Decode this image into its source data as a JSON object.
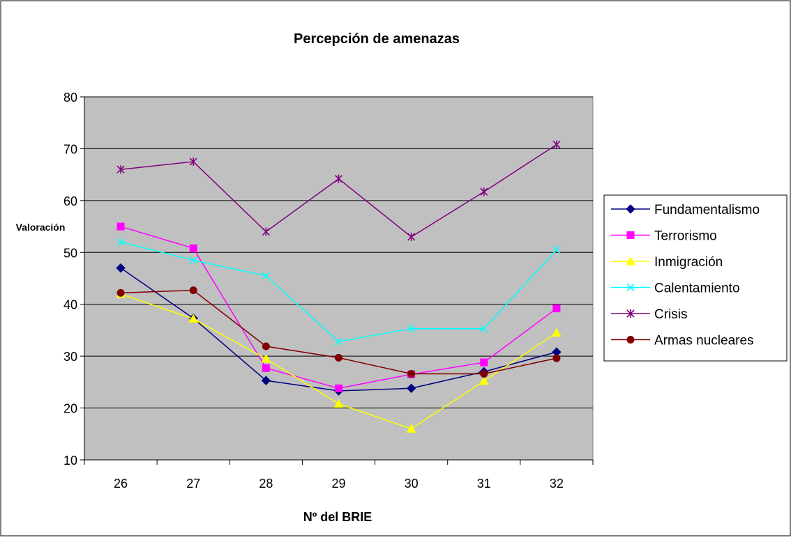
{
  "chart_data": {
    "type": "line",
    "title": "Percepción de amenazas",
    "xlabel": "Nº del BRIE",
    "ylabel": "Valoración",
    "categories": [
      "26",
      "27",
      "28",
      "29",
      "30",
      "31",
      "32"
    ],
    "ylim": [
      10,
      80
    ],
    "yticks": [
      10,
      20,
      30,
      40,
      50,
      60,
      70,
      80
    ],
    "grid": true,
    "legend_position": "right",
    "plot_background": "#c0c0c0",
    "series": [
      {
        "name": "Fundamentalismo",
        "color": "#000080",
        "marker": "diamond",
        "values": [
          47,
          37.3,
          25.3,
          23.3,
          23.8,
          27,
          30.8
        ]
      },
      {
        "name": "Terrorismo",
        "color": "#ff00ff",
        "marker": "square",
        "values": [
          55,
          50.8,
          27.7,
          23.8,
          26.5,
          28.8,
          39.2
        ]
      },
      {
        "name": "Inmigración",
        "color": "#ffff00",
        "marker": "triangle",
        "values": [
          42,
          37.2,
          29.5,
          20.8,
          16,
          25.2,
          34.5
        ]
      },
      {
        "name": "Calentamiento",
        "color": "#00ffff",
        "marker": "x",
        "values": [
          52,
          48.5,
          45.5,
          32.8,
          35.3,
          35.3,
          50.5
        ]
      },
      {
        "name": "Crisis",
        "color": "#800080",
        "marker": "star",
        "values": [
          66,
          67.5,
          54,
          64.2,
          53,
          61.7,
          70.8
        ]
      },
      {
        "name": "Armas nucleares",
        "color": "#800000",
        "marker": "circle",
        "values": [
          42.2,
          42.7,
          31.9,
          29.7,
          26.6,
          26.6,
          29.6
        ]
      }
    ]
  }
}
